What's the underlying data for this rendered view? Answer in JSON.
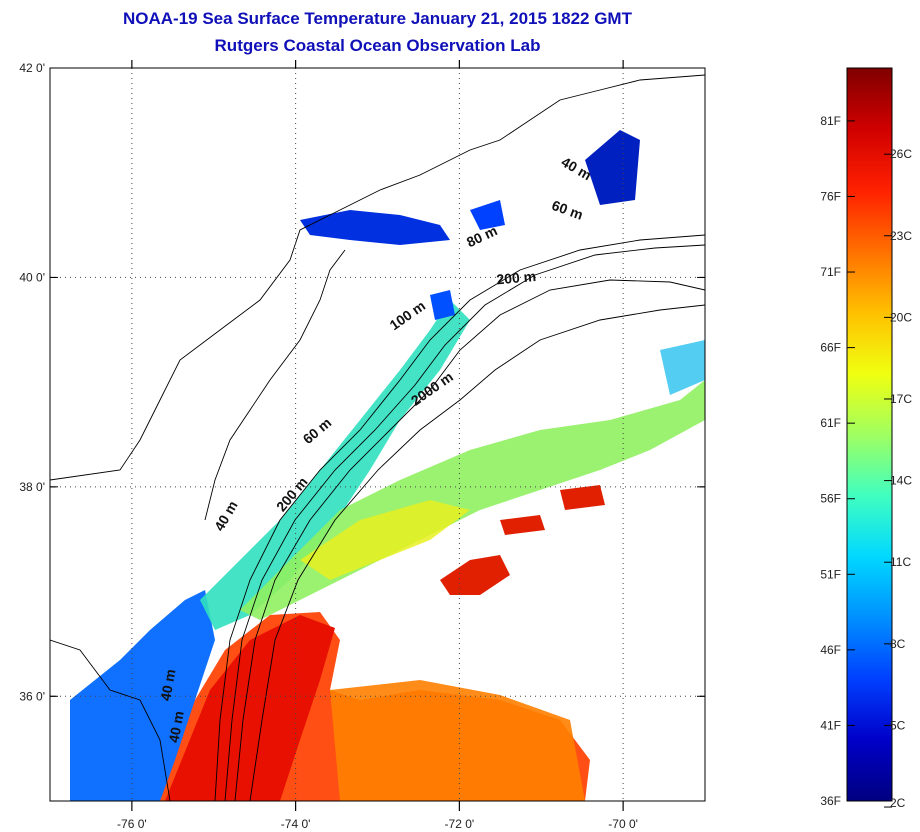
{
  "title": "NOAA-19 Sea Surface Temperature January 21, 2015 1822 GMT",
  "subtitle": "Rutgers Coastal Ocean Observation Lab",
  "map": {
    "lat_range": [
      35,
      42
    ],
    "lon_range": [
      -77,
      -69
    ],
    "lat_ticks": [
      {
        "value": 36,
        "label": "36 0'"
      },
      {
        "value": 38,
        "label": "38 0'"
      },
      {
        "value": 40,
        "label": "40 0'"
      },
      {
        "value": 42,
        "label": "42 0'"
      }
    ],
    "lon_ticks": [
      {
        "value": -76,
        "label": "-76 0'"
      },
      {
        "value": -74,
        "label": "-74 0'"
      },
      {
        "value": -72,
        "label": "-72 0'"
      },
      {
        "value": -70,
        "label": "-70 0'"
      }
    ],
    "gridlines": "dotted",
    "contour_labels": [
      {
        "text": "60 m",
        "lon": -70.7,
        "lat": 40.6,
        "angle": 20
      },
      {
        "text": "80 m",
        "lon": -71.7,
        "lat": 40.35,
        "angle": -25
      },
      {
        "text": "200 m",
        "lon": -71.3,
        "lat": 39.95,
        "angle": -5
      },
      {
        "text": "100 m",
        "lon": -72.6,
        "lat": 39.6,
        "angle": -35
      },
      {
        "text": "2000 m",
        "lon": -72.3,
        "lat": 38.9,
        "angle": -35
      },
      {
        "text": "60 m",
        "lon": -73.7,
        "lat": 38.5,
        "angle": -40
      },
      {
        "text": "200 m",
        "lon": -74.0,
        "lat": 37.9,
        "angle": -50
      },
      {
        "text": "40 m",
        "lon": -74.8,
        "lat": 37.7,
        "angle": -60
      },
      {
        "text": "40 m",
        "lon": -75.4,
        "lat": 35.7,
        "angle": -80
      },
      {
        "text": "40 m",
        "lon": -75.5,
        "lat": 36.1,
        "angle": -80
      },
      {
        "text": "40 m",
        "lon": -70.6,
        "lat": 41.0,
        "angle": 30
      }
    ]
  },
  "colorbar": {
    "colors": [
      "#000080",
      "#0000c8",
      "#0040ff",
      "#0090ff",
      "#00d8ff",
      "#40ffc0",
      "#a0ff60",
      "#f0ff10",
      "#ffc000",
      "#ff7000",
      "#ff2000",
      "#d00000",
      "#800000"
    ],
    "fahrenheit_labels": [
      {
        "value": 36,
        "label": "36F"
      },
      {
        "value": 41,
        "label": "41F"
      },
      {
        "value": 46,
        "label": "46F"
      },
      {
        "value": 51,
        "label": "51F"
      },
      {
        "value": 56,
        "label": "56F"
      },
      {
        "value": 61,
        "label": "61F"
      },
      {
        "value": 66,
        "label": "66F"
      },
      {
        "value": 71,
        "label": "71F"
      },
      {
        "value": 76,
        "label": "76F"
      },
      {
        "value": 81,
        "label": "81F"
      }
    ],
    "celsius_labels": [
      {
        "value": 2,
        "label": "2C"
      },
      {
        "value": 5,
        "label": "5C"
      },
      {
        "value": 8,
        "label": "8C"
      },
      {
        "value": 11,
        "label": "11C"
      },
      {
        "value": 14,
        "label": "14C"
      },
      {
        "value": 17,
        "label": "17C"
      },
      {
        "value": 20,
        "label": "20C"
      },
      {
        "value": 23,
        "label": "23C"
      },
      {
        "value": 26,
        "label": "26C"
      }
    ]
  }
}
